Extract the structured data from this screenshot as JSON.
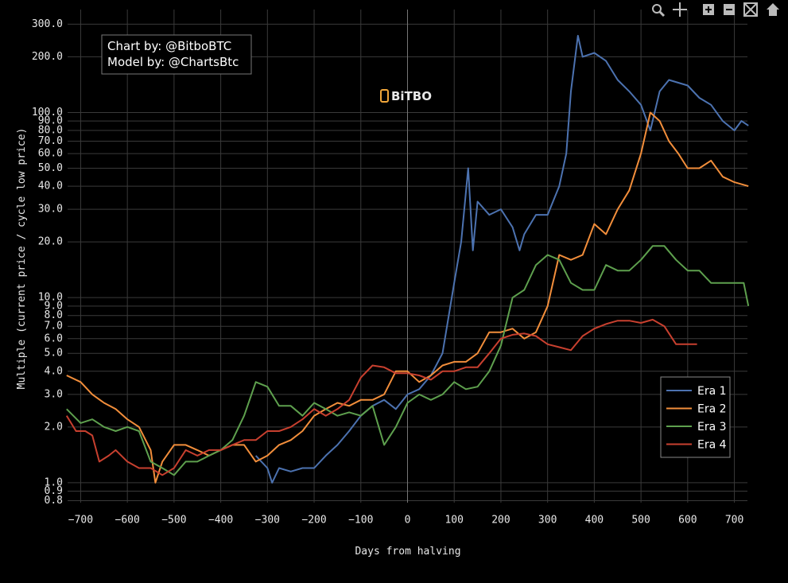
{
  "chart_data": {
    "type": "line",
    "annotations": [
      "Chart by: @BitboBTC",
      "Model by: @ChartsBtc"
    ],
    "logo": "BiTBO",
    "x_label": "Days from halving",
    "y_label": "Multiple (current price / cycle low price)",
    "log_y": true,
    "grid": true,
    "legend": "bottom-right",
    "xlim": [
      -728,
      728
    ],
    "ylim": [
      0.78,
      360
    ],
    "xticks": [
      {
        "value": -700,
        "label": "−700"
      },
      {
        "value": -600,
        "label": "−600"
      },
      {
        "value": -500,
        "label": "−500"
      },
      {
        "value": -400,
        "label": "−400"
      },
      {
        "value": -300,
        "label": "−300"
      },
      {
        "value": -200,
        "label": "−200"
      },
      {
        "value": -100,
        "label": "−100"
      },
      0,
      100,
      200,
      300,
      400,
      500,
      600,
      700
    ],
    "yticks": [
      0.8,
      0.9,
      {
        "value": 1,
        "label": "1.0"
      },
      {
        "value": 2,
        "label": "2.0"
      },
      {
        "value": 3,
        "label": "3.0"
      },
      {
        "value": 4,
        "label": "4.0"
      },
      {
        "value": 5,
        "label": "5.0"
      },
      {
        "value": 6,
        "label": "6.0"
      },
      {
        "value": 7,
        "label": "7.0"
      },
      {
        "value": 8,
        "label": "8.0"
      },
      {
        "value": 9,
        "label": "9.0"
      },
      {
        "value": 10,
        "label": "10.0"
      },
      {
        "value": 20,
        "label": "20.0"
      },
      {
        "value": 30,
        "label": "30.0"
      },
      {
        "value": 40,
        "label": "40.0"
      },
      {
        "value": 50,
        "label": "50.0"
      },
      {
        "value": 60,
        "label": "60.0"
      },
      {
        "value": 70,
        "label": "70.0"
      },
      {
        "value": 80,
        "label": "80.0"
      },
      {
        "value": 90,
        "label": "90.0"
      },
      {
        "value": 100,
        "label": "100.0"
      },
      {
        "value": 200,
        "label": "200.0"
      },
      {
        "value": 300,
        "label": "300.0"
      }
    ],
    "series": [
      {
        "name": "Era 1",
        "color": "#4c72b0",
        "x": [
          -325,
          -300,
          -290,
          -275,
          -250,
          -225,
          -200,
          -175,
          -150,
          -125,
          -100,
          -75,
          -50,
          -25,
          0,
          25,
          50,
          75,
          100,
          115,
          130,
          140,
          150,
          175,
          200,
          225,
          240,
          250,
          275,
          300,
          325,
          340,
          350,
          365,
          375,
          400,
          425,
          450,
          475,
          500,
          520,
          540,
          560,
          600,
          625,
          650,
          675,
          700,
          715,
          730
        ],
        "values": [
          1.4,
          1.2,
          1.0,
          1.2,
          1.15,
          1.2,
          1.2,
          1.4,
          1.6,
          1.9,
          2.3,
          2.6,
          2.8,
          2.5,
          3.0,
          3.2,
          3.8,
          5.0,
          12,
          20,
          50,
          18,
          33,
          28,
          30,
          24,
          18,
          22,
          28,
          28,
          40,
          60,
          130,
          260,
          200,
          210,
          190,
          150,
          130,
          110,
          80,
          130,
          150,
          140,
          120,
          110,
          90,
          80,
          90,
          85
        ]
      },
      {
        "name": "Era 2",
        "color": "#f28e3b",
        "x": [
          -730,
          -700,
          -675,
          -650,
          -625,
          -600,
          -575,
          -550,
          -540,
          -525,
          -500,
          -475,
          -450,
          -425,
          -400,
          -375,
          -350,
          -325,
          -300,
          -275,
          -250,
          -225,
          -200,
          -175,
          -150,
          -125,
          -100,
          -75,
          -50,
          -25,
          0,
          25,
          50,
          75,
          100,
          125,
          150,
          175,
          200,
          225,
          250,
          275,
          300,
          325,
          350,
          375,
          400,
          425,
          450,
          475,
          500,
          520,
          540,
          560,
          580,
          600,
          625,
          650,
          675,
          700,
          730
        ],
        "values": [
          3.8,
          3.5,
          3.0,
          2.7,
          2.5,
          2.2,
          2.0,
          1.5,
          1.0,
          1.3,
          1.6,
          1.6,
          1.5,
          1.4,
          1.5,
          1.6,
          1.6,
          1.3,
          1.4,
          1.6,
          1.7,
          1.9,
          2.3,
          2.5,
          2.7,
          2.6,
          2.8,
          2.8,
          3.0,
          4.0,
          4.0,
          3.5,
          3.8,
          4.3,
          4.5,
          4.5,
          5.0,
          6.5,
          6.5,
          6.8,
          6.0,
          6.5,
          9,
          17,
          16,
          17,
          25,
          22,
          30,
          38,
          60,
          100,
          90,
          70,
          60,
          50,
          50,
          55,
          45,
          42,
          40
        ]
      },
      {
        "name": "Era 3",
        "color": "#5ea04e",
        "x": [
          -730,
          -700,
          -675,
          -650,
          -625,
          -600,
          -575,
          -550,
          -525,
          -500,
          -475,
          -450,
          -425,
          -400,
          -375,
          -350,
          -325,
          -300,
          -275,
          -250,
          -225,
          -200,
          -175,
          -150,
          -125,
          -100,
          -75,
          -50,
          -25,
          0,
          25,
          50,
          75,
          100,
          125,
          150,
          175,
          200,
          225,
          250,
          275,
          300,
          325,
          350,
          375,
          400,
          425,
          450,
          475,
          500,
          525,
          550,
          575,
          600,
          625,
          650,
          675,
          700,
          720,
          730
        ],
        "values": [
          2.5,
          2.1,
          2.2,
          2.0,
          1.9,
          2.0,
          1.9,
          1.3,
          1.2,
          1.1,
          1.3,
          1.3,
          1.4,
          1.5,
          1.7,
          2.3,
          3.5,
          3.3,
          2.6,
          2.6,
          2.3,
          2.7,
          2.5,
          2.3,
          2.4,
          2.3,
          2.6,
          1.6,
          2.0,
          2.7,
          3.0,
          2.8,
          3.0,
          3.5,
          3.2,
          3.3,
          4.0,
          5.5,
          10,
          11,
          15,
          17,
          16,
          12,
          11,
          11,
          15,
          14,
          14,
          16,
          19,
          19,
          16,
          14,
          14,
          12,
          12,
          12,
          12,
          9
        ]
      },
      {
        "name": "Era 4",
        "color": "#c8402f",
        "x": [
          -730,
          -710,
          -690,
          -675,
          -660,
          -640,
          -625,
          -600,
          -575,
          -550,
          -525,
          -500,
          -475,
          -450,
          -425,
          -400,
          -375,
          -350,
          -325,
          -300,
          -275,
          -250,
          -225,
          -200,
          -175,
          -150,
          -125,
          -100,
          -75,
          -50,
          -25,
          0,
          25,
          50,
          75,
          100,
          125,
          150,
          175,
          200,
          225,
          250,
          275,
          300,
          325,
          350,
          375,
          400,
          425,
          450,
          475,
          500,
          525,
          550,
          575,
          600,
          620
        ],
        "values": [
          2.3,
          1.9,
          1.9,
          1.8,
          1.3,
          1.4,
          1.5,
          1.3,
          1.2,
          1.2,
          1.1,
          1.2,
          1.5,
          1.4,
          1.5,
          1.5,
          1.6,
          1.7,
          1.7,
          1.9,
          1.9,
          2.0,
          2.2,
          2.5,
          2.3,
          2.5,
          2.8,
          3.7,
          4.3,
          4.2,
          3.9,
          3.9,
          3.8,
          3.6,
          4.0,
          4.0,
          4.2,
          4.2,
          5.0,
          6.0,
          6.3,
          6.4,
          6.2,
          5.6,
          5.4,
          5.2,
          6.2,
          6.8,
          7.2,
          7.5,
          7.5,
          7.3,
          7.6,
          7.0,
          5.6,
          5.6,
          5.6
        ]
      }
    ]
  }
}
